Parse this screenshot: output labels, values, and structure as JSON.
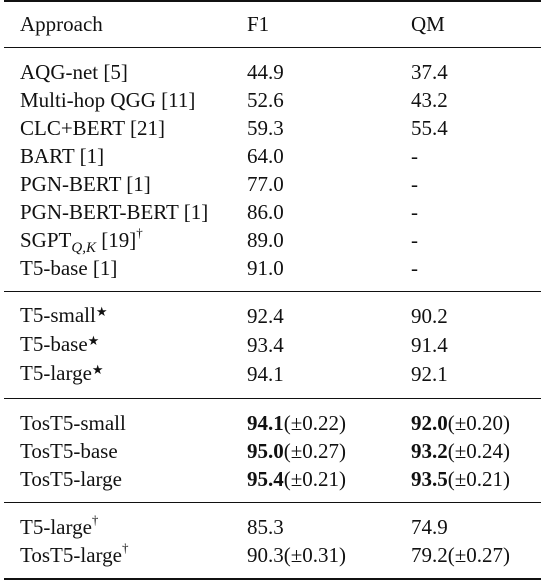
{
  "headers": [
    "Approach",
    "F1",
    "QM"
  ],
  "groups": [
    [
      {
        "approach": "AQG-net [5]",
        "f1": "44.9",
        "qm": "37.4"
      },
      {
        "approach": "Multi-hop QGG [11]",
        "f1": "52.6",
        "qm": "43.2"
      },
      {
        "approach": "CLC+BERT [21]",
        "f1": "59.3",
        "qm": "55.4"
      },
      {
        "approach": "BART [1]",
        "f1": "64.0",
        "qm": "-"
      },
      {
        "approach": "PGN-BERT [1]",
        "f1": "77.0",
        "qm": "-"
      },
      {
        "approach": "PGN-BERT-BERT [1]",
        "f1": "86.0",
        "qm": "-"
      },
      {
        "approach_base": "SGPT",
        "approach_sub": "Q,K",
        "approach_ref": " [19]",
        "approach_mark": "†",
        "f1": "89.0",
        "qm": "-"
      },
      {
        "approach": "T5-base [1]",
        "f1": "91.0",
        "qm": "-"
      }
    ],
    [
      {
        "approach": "T5-small",
        "mark": "★",
        "f1": "92.4",
        "qm": "90.2"
      },
      {
        "approach": "T5-base",
        "mark": "★",
        "f1": "93.4",
        "qm": "91.4"
      },
      {
        "approach": "T5-large",
        "mark": "★",
        "f1": "94.1",
        "qm": "92.1"
      }
    ],
    [
      {
        "approach": "TosT5-small",
        "f1": "94.1",
        "f1_pm": "(±0.22)",
        "qm": "92.0",
        "qm_pm": "(±0.20)"
      },
      {
        "approach": "TosT5-base",
        "f1": "95.0",
        "f1_pm": "(±0.27)",
        "qm": "93.2",
        "qm_pm": "(±0.24)"
      },
      {
        "approach": "TosT5-large",
        "f1": "95.4",
        "f1_pm": "(±0.21)",
        "qm": "93.5",
        "qm_pm": "(±0.21)"
      }
    ],
    [
      {
        "approach": "T5-large",
        "mark": "†",
        "f1": "85.3",
        "qm": "74.9"
      },
      {
        "approach": "TosT5-large",
        "mark": "†",
        "f1": "90.3(±0.31)",
        "qm": "79.2(±0.27)"
      }
    ]
  ]
}
